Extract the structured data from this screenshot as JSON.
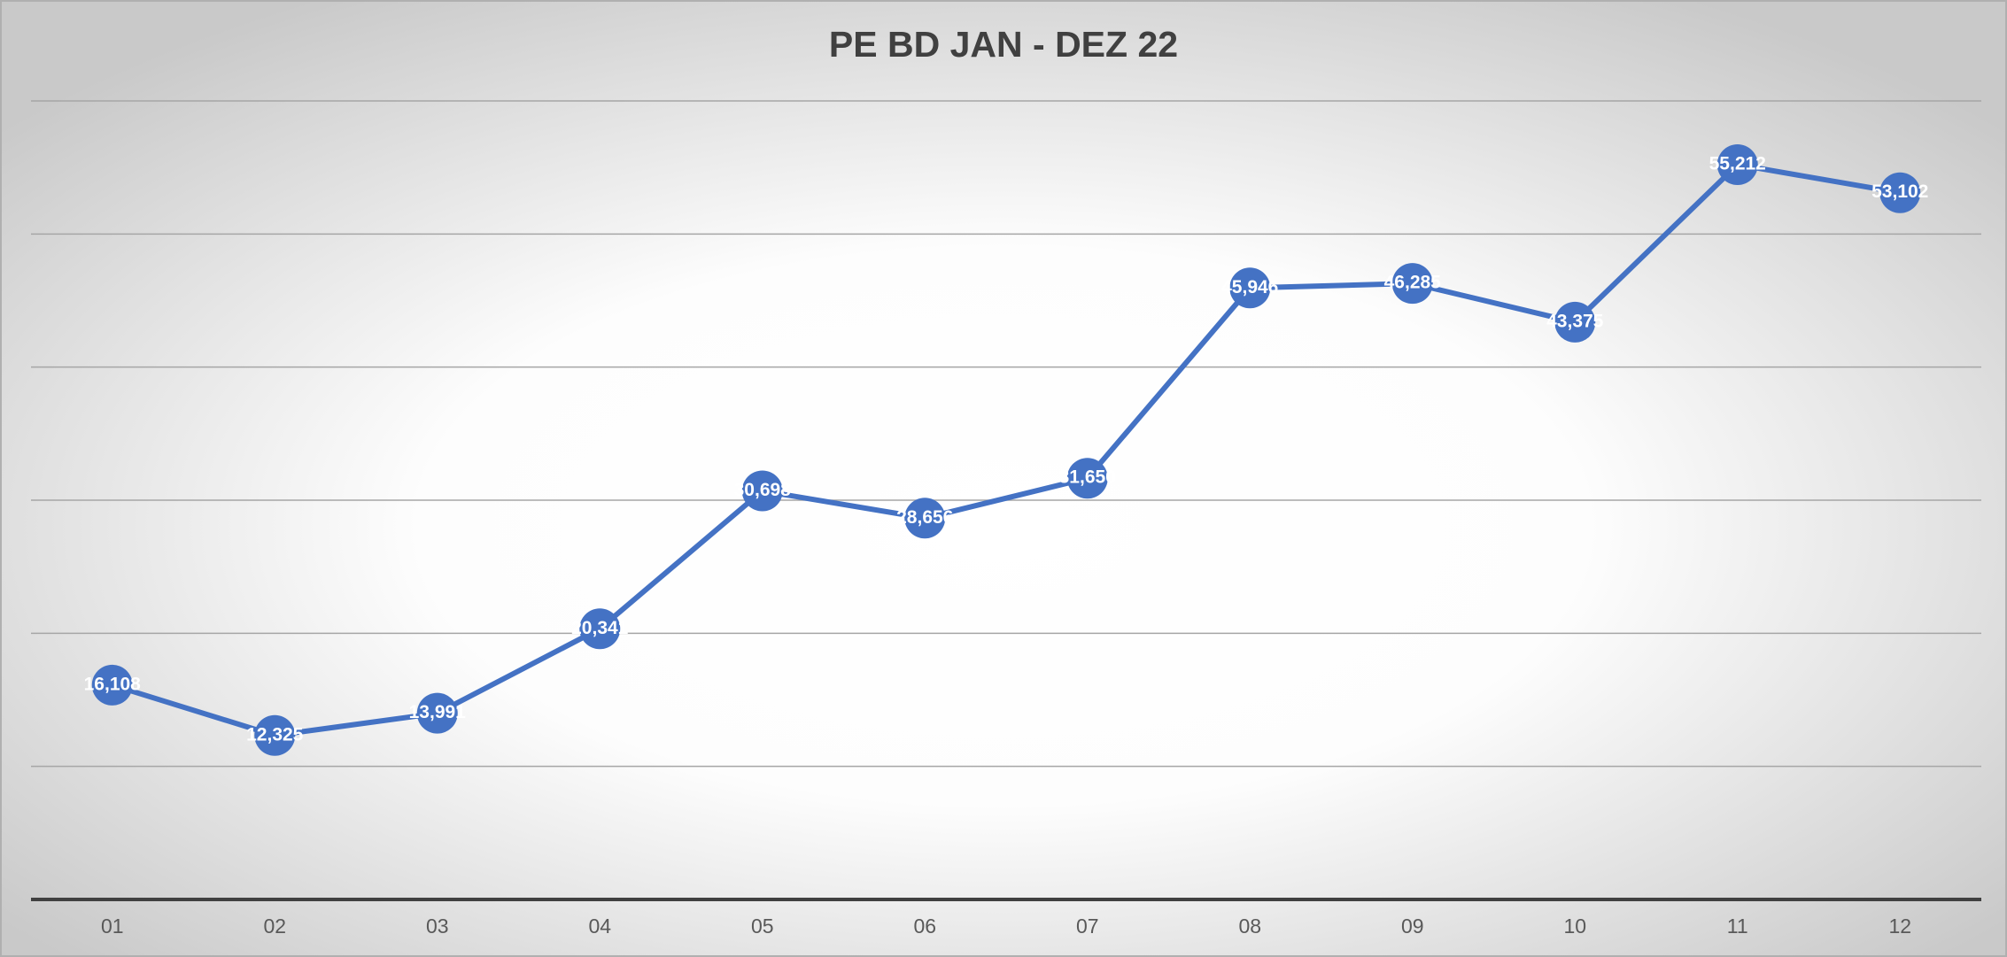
{
  "chart_data": {
    "type": "line",
    "title": "PE BD JAN - DEZ 22",
    "categories": [
      "01",
      "02",
      "03",
      "04",
      "05",
      "06",
      "07",
      "08",
      "09",
      "10",
      "11",
      "12"
    ],
    "series": [
      {
        "color": "#4472c4",
        "values": [
          16108,
          12325,
          13991,
          20341,
          30698,
          28656,
          31650,
          45946,
          46285,
          43375,
          55212,
          53102
        ],
        "value_labels": [
          "16,108",
          "12,325",
          "13,991",
          "20,341",
          "30,698",
          "28,656",
          "31,650",
          "45,946",
          "46,285",
          "43,375",
          "55,212",
          "53,102"
        ]
      }
    ],
    "ylim": [
      0,
      60000
    ],
    "yticks": [
      0,
      10000,
      20000,
      30000,
      40000,
      50000,
      60000
    ],
    "show_ytick_labels": false,
    "grid": true
  }
}
